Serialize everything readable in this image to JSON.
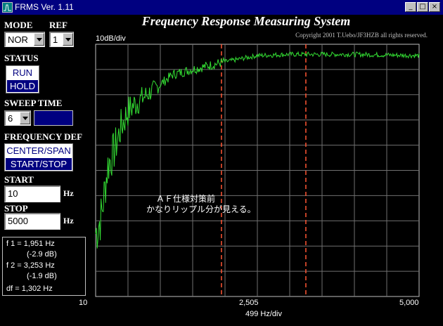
{
  "window": {
    "title": "FRMS  Ver. 1.11",
    "buttons": [
      "_",
      "□",
      "×"
    ]
  },
  "mode": {
    "label": "MODE",
    "value": "NOR"
  },
  "ref": {
    "label": "REF",
    "value": "1"
  },
  "status": {
    "label": "STATUS",
    "options": [
      "RUN",
      "HOLD"
    ],
    "selected": "HOLD"
  },
  "sweep": {
    "label": "SWEEP TIME",
    "value": "6"
  },
  "freqdef": {
    "label": "FREQUENCY DEF",
    "options": [
      "CENTER/SPAN",
      "START/STOP"
    ],
    "selected": "START/STOP"
  },
  "start": {
    "label": "START",
    "value": "10",
    "unit": "Hz"
  },
  "stop": {
    "label": "STOP",
    "value": "5000",
    "unit": "Hz"
  },
  "readout": {
    "f1": "f 1 = 1,951 Hz",
    "f1_db": "(-2.9 dB)",
    "f2": "f 2 = 3,253 Hz",
    "f2_db": "(-1.9 dB)",
    "df": "df = 1,302 Hz"
  },
  "chart_data": {
    "type": "line",
    "title": "Frequency Response Measuring System",
    "copyright": "Copyright 2001 T.Uebo/JF3HZB all rights reserved.",
    "ylabel": "10dB/div",
    "xlabel": "499 Hz/div",
    "x_tick_labels": [
      "10",
      "2,505",
      "5,000"
    ],
    "xlim": [
      10,
      5000
    ],
    "ylim_div": [
      -10,
      0
    ],
    "grid": true,
    "cursors_hz": [
      1951,
      3253
    ],
    "annotation": [
      "ＡＦ仕様対策前",
      "かなりリップル分が見える。"
    ],
    "series": [
      {
        "color": "#33dd33",
        "x_hz": [
          10,
          100,
          200,
          300,
          400,
          500,
          600,
          800,
          1000,
          1200,
          1500,
          2000,
          2500,
          3000,
          4000,
          5000
        ],
        "y_div": [
          -7.5,
          -6.8,
          -4.8,
          -4.2,
          -3.3,
          -2.7,
          -2.4,
          -2.0,
          -1.6,
          -1.2,
          -1.0,
          -0.7,
          -0.45,
          -0.4,
          -0.4,
          -0.45
        ]
      }
    ]
  }
}
